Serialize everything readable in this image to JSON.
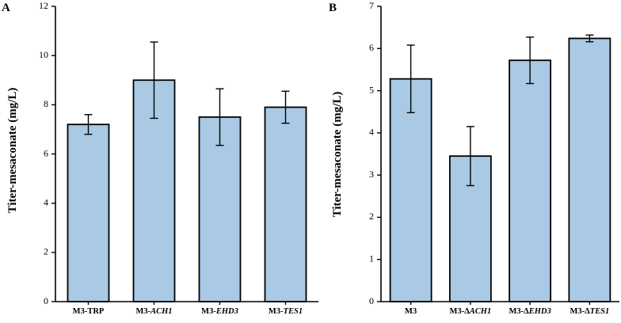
{
  "chart_data": [
    {
      "type": "bar",
      "panel_label": "A",
      "title": "",
      "xlabel": "",
      "ylabel": "Titer-mesaconate (mg/L)",
      "ylim": [
        0,
        12
      ],
      "yticks": [
        0,
        2,
        4,
        6,
        8,
        10,
        12
      ],
      "grid": false,
      "categories": [
        {
          "prefix": "M3-",
          "italic": "",
          "plain": "TRP"
        },
        {
          "prefix": "M3-",
          "italic": "ACH1",
          "plain": ""
        },
        {
          "prefix": "M3-",
          "italic": "EHD3",
          "plain": ""
        },
        {
          "prefix": "M3-",
          "italic": "TES1",
          "plain": ""
        }
      ],
      "values": [
        7.2,
        9.0,
        7.5,
        7.9
      ],
      "errors": [
        0.4,
        1.55,
        1.15,
        0.65
      ]
    },
    {
      "type": "bar",
      "panel_label": "B",
      "title": "",
      "xlabel": "",
      "ylabel": "Titer-mesaconate (mg/L)",
      "ylim": [
        0,
        7
      ],
      "yticks": [
        0,
        1,
        2,
        3,
        4,
        5,
        6,
        7
      ],
      "grid": false,
      "categories": [
        {
          "prefix": "M3",
          "italic": "",
          "plain": ""
        },
        {
          "prefix": "M3-Δ",
          "italic": "ACH1",
          "plain": ""
        },
        {
          "prefix": "M3-Δ",
          "italic": "EHD3",
          "plain": ""
        },
        {
          "prefix": "M3-Δ",
          "italic": "TES1",
          "plain": ""
        }
      ],
      "values": [
        5.28,
        3.45,
        5.72,
        6.24
      ],
      "errors": [
        0.8,
        0.7,
        0.55,
        0.08
      ]
    }
  ],
  "colors": {
    "bar_fill": "#a9c9e4",
    "bar_stroke": "#000000"
  }
}
